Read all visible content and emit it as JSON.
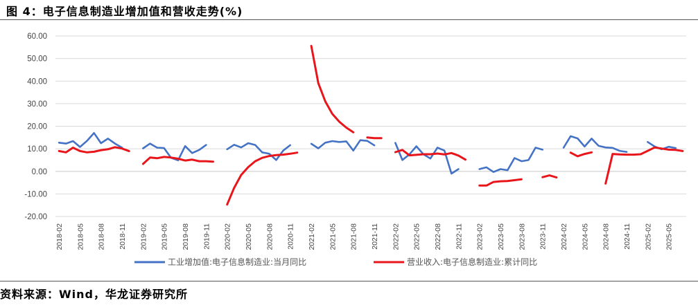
{
  "figure": {
    "title": "图 4：电子信息制造业增加值和营收走势(%)",
    "source": "资料来源：Wind，华龙证券研究所"
  },
  "chart_data": {
    "type": "line",
    "title": "电子信息制造业增加值和营收走势(%)",
    "xlabel": "",
    "ylabel": "",
    "ylim": [
      -20,
      60
    ],
    "yticks": [
      -20,
      -10,
      0,
      10,
      20,
      30,
      40,
      50,
      60
    ],
    "ytick_labels": [
      "-20.00",
      "-10.00",
      "0.00",
      "10.00",
      "20.00",
      "30.00",
      "40.00",
      "50.00",
      "60.00"
    ],
    "grid": true,
    "legend_position": "bottom",
    "x": [
      "2018-02",
      "2018-03",
      "2018-04",
      "2018-05",
      "2018-06",
      "2018-07",
      "2018-08",
      "2018-09",
      "2018-10",
      "2018-11",
      "2018-12",
      "2019-01",
      "2019-02",
      "2019-03",
      "2019-04",
      "2019-05",
      "2019-06",
      "2019-07",
      "2019-08",
      "2019-09",
      "2019-10",
      "2019-11",
      "2019-12",
      "2020-01",
      "2020-02",
      "2020-03",
      "2020-04",
      "2020-05",
      "2020-06",
      "2020-07",
      "2020-08",
      "2020-09",
      "2020-10",
      "2020-11",
      "2020-12",
      "2021-01",
      "2021-02",
      "2021-03",
      "2021-04",
      "2021-05",
      "2021-06",
      "2021-07",
      "2021-08",
      "2021-09",
      "2021-10",
      "2021-11",
      "2021-12",
      "2022-01",
      "2022-02",
      "2022-03",
      "2022-04",
      "2022-05",
      "2022-06",
      "2022-07",
      "2022-08",
      "2022-09",
      "2022-10",
      "2022-11",
      "2022-12",
      "2023-01",
      "2023-02",
      "2023-03",
      "2023-04",
      "2023-05",
      "2023-06",
      "2023-07",
      "2023-08",
      "2023-09",
      "2023-10",
      "2023-11",
      "2023-12",
      "2024-01",
      "2024-02",
      "2024-03",
      "2024-04",
      "2024-05",
      "2024-06",
      "2024-07",
      "2024-08",
      "2024-09",
      "2024-10",
      "2024-11",
      "2024-12",
      "2025-01",
      "2025-02",
      "2025-03",
      "2025-04",
      "2025-05",
      "2025-06",
      "2025-07"
    ],
    "xtick_labels": [
      "2018-02",
      "2018-05",
      "2018-08",
      "2018-11",
      "2019-02",
      "2019-05",
      "2019-08",
      "2019-11",
      "2020-02",
      "2020-05",
      "2020-08",
      "2020-11",
      "2021-02",
      "2021-05",
      "2021-08",
      "2021-11",
      "2022-02",
      "2022-05",
      "2022-08",
      "2022-11",
      "2023-02",
      "2023-05",
      "2023-08",
      "2023-11",
      "2024-02",
      "2024-05",
      "2024-08",
      "2024-11",
      "2025-02",
      "2025-05"
    ],
    "series": [
      {
        "name": "工业增加值:电子信息制造业:当月同比",
        "color": "#4472C4",
        "values": [
          12.7,
          12.3,
          13.4,
          10.8,
          13.5,
          17.0,
          12.5,
          14.5,
          12.3,
          10.5,
          null,
          null,
          10.2,
          12.3,
          10.5,
          10.3,
          6.0,
          4.9,
          11.2,
          8.1,
          9.5,
          11.7,
          null,
          null,
          9.8,
          11.8,
          10.6,
          12.5,
          11.7,
          8.4,
          7.8,
          5.0,
          9.2,
          11.6,
          null,
          null,
          12.2,
          10.2,
          12.7,
          13.4,
          13.0,
          13.3,
          9.2,
          13.8,
          13.5,
          11.5,
          null,
          null,
          12.6,
          5.0,
          7.5,
          11.1,
          7.6,
          5.7,
          10.5,
          9.2,
          -1.0,
          1.0,
          null,
          null,
          1.0,
          1.8,
          -0.3,
          1.0,
          0.5,
          5.9,
          4.5,
          5.0,
          10.5,
          9.6,
          null,
          null,
          10.5,
          15.6,
          14.6,
          11.0,
          14.5,
          11.3,
          10.6,
          10.4,
          9.1,
          8.6,
          null,
          null,
          13.0,
          11.0,
          9.8,
          10.9,
          10.3,
          null
        ]
      },
      {
        "name": "营业收入:电子信息制造业:累计同比",
        "color": "#E8151B",
        "values": [
          9.0,
          8.4,
          10.5,
          9.0,
          8.4,
          8.7,
          9.4,
          9.8,
          10.7,
          10.1,
          9.0,
          null,
          3.3,
          6.1,
          5.8,
          6.4,
          6.1,
          5.6,
          4.8,
          5.2,
          4.5,
          4.5,
          4.3,
          null,
          -14.7,
          -7.3,
          -1.6,
          1.9,
          4.5,
          6.0,
          6.8,
          7.2,
          7.4,
          7.8,
          8.3,
          null,
          55.6,
          39.1,
          31.0,
          25.5,
          22.0,
          19.4,
          17.3,
          null,
          15.0,
          14.7,
          14.7,
          null,
          8.5,
          9.5,
          7.1,
          7.3,
          7.6,
          7.6,
          7.9,
          7.5,
          8.1,
          7.0,
          5.2,
          null,
          -6.3,
          -6.3,
          -4.7,
          -4.4,
          -4.3,
          -3.9,
          -3.5,
          null,
          null,
          -2.6,
          -1.8,
          -2.7,
          null,
          8.3,
          6.7,
          7.7,
          8.4,
          null,
          -5.4,
          7.7,
          7.5,
          7.4,
          7.4,
          7.6,
          9.1,
          10.6,
          10.1,
          9.6,
          9.5,
          9.0
        ]
      }
    ]
  }
}
